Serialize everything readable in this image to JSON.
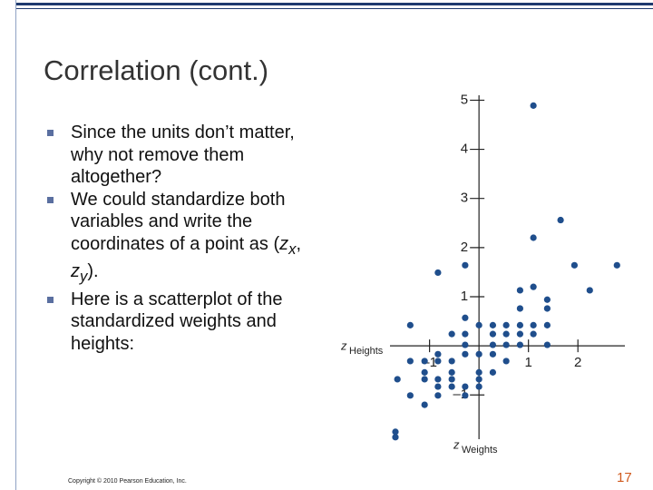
{
  "header": {
    "title": "Correlation (cont.)"
  },
  "bullets": [
    [
      "Since the units don’t matter, why not remove them altogether?"
    ],
    [
      "We could standardize both variables and write the coordinates of a point as (",
      "z",
      "x",
      ", ",
      "z",
      "y",
      ")."
    ],
    [
      "Here is a scatterplot of the standardized weights and heights:"
    ]
  ],
  "footer": {
    "copyright": "Copyright © 2010 Pearson Education, Inc.",
    "page": "17"
  },
  "chart_data": {
    "type": "scatter",
    "color": "#1f4e8c",
    "x_label": {
      "symbol": "z",
      "text": "Weights"
    },
    "y_label": {
      "symbol": "z",
      "text": "Heights"
    },
    "xlim": [
      -1.8,
      2.95
    ],
    "ylim": [
      -1.9,
      5.1
    ],
    "xticks": [
      {
        "value": -1,
        "label": "–1"
      },
      1,
      2
    ],
    "yticks": [
      {
        "value": -1,
        "label": "–1"
      },
      1,
      2,
      3,
      4,
      5
    ],
    "x": [
      1.1,
      1.65,
      1.1,
      -0.83,
      -0.28,
      1.93,
      2.79,
      2.24,
      0.83,
      1.1,
      1.38,
      0.83,
      1.38,
      -0.28,
      -1.39,
      0,
      0.28,
      0.55,
      0.83,
      1.1,
      1.38,
      -0.55,
      -0.28,
      0.28,
      0.55,
      0.83,
      1.1,
      -0.28,
      0.28,
      0.55,
      0.83,
      1.38,
      -0.83,
      -0.28,
      0,
      0.28,
      -1.1,
      -0.55,
      -0.83,
      -1.39,
      0.55,
      -1.1,
      -0.55,
      0,
      0.28,
      -1.65,
      -1.1,
      -0.83,
      -0.55,
      0,
      -0.83,
      -0.55,
      -0.28,
      0,
      -1.39,
      -0.83,
      -0.28,
      -1.1,
      -1.69,
      -1.69
    ],
    "values": [
      4.89,
      2.56,
      2.2,
      1.49,
      1.64,
      1.64,
      1.64,
      1.13,
      1.13,
      1.2,
      0.94,
      0.76,
      0.76,
      0.57,
      0.42,
      0.42,
      0.42,
      0.42,
      0.42,
      0.42,
      0.42,
      0.24,
      0.24,
      0.24,
      0.24,
      0.24,
      0.24,
      0.02,
      0.02,
      0.02,
      0.02,
      0.02,
      -0.17,
      -0.17,
      -0.17,
      -0.17,
      -0.31,
      -0.31,
      -0.31,
      -0.31,
      -0.31,
      -0.54,
      -0.54,
      -0.54,
      -0.54,
      -0.68,
      -0.68,
      -0.68,
      -0.68,
      -0.68,
      -0.83,
      -0.83,
      -0.83,
      -0.83,
      -1.01,
      -1.01,
      -1.01,
      -1.2,
      -1.75,
      -1.86
    ]
  }
}
